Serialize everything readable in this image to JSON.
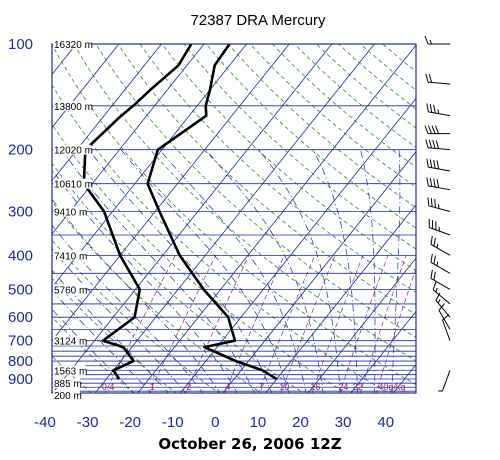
{
  "title": "72387 DRA Mercury",
  "footer": "October 26, 2006 12Z",
  "chart_data": {
    "type": "skew-t log-p",
    "title": "72387 DRA Mercury",
    "caption": "October 26, 2006 12Z",
    "pressure_ticks": [
      "100",
      "200",
      "300",
      "400",
      "500",
      "600",
      "700",
      "800",
      "900"
    ],
    "temperature_ticks": [
      "-40",
      "-30",
      "-20",
      "-10",
      "0",
      "10",
      "20",
      "30",
      "40"
    ],
    "height_labels": [
      {
        "p": 100,
        "label": "16320 m"
      },
      {
        "p": 150,
        "label": "13800 m"
      },
      {
        "p": 200,
        "label": "12020 m"
      },
      {
        "p": 250,
        "label": "10610 m"
      },
      {
        "p": 300,
        "label": "9410 m"
      },
      {
        "p": 400,
        "label": "7410 m"
      },
      {
        "p": 500,
        "label": "5760 m"
      },
      {
        "p": 700,
        "label": "3124 m"
      },
      {
        "p": 850,
        "label": "1563 m"
      },
      {
        "p": 925,
        "label": "885 m"
      },
      {
        "p": 1000,
        "label": "200 m"
      }
    ],
    "mixing_ratio_labels": [
      "0.4",
      "1",
      "2",
      "4",
      "7",
      "10",
      "16",
      "24",
      "32",
      "40g/kg"
    ],
    "temperature_profile": [
      [
        100,
        -64
      ],
      [
        115,
        -63.5
      ],
      [
        135,
        -60
      ],
      [
        150,
        -58
      ],
      [
        160,
        -56
      ],
      [
        200,
        -61
      ],
      [
        250,
        -57
      ],
      [
        300,
        -49
      ],
      [
        400,
        -36
      ],
      [
        500,
        -24
      ],
      [
        600,
        -13
      ],
      [
        700,
        -7
      ],
      [
        730,
        -13
      ],
      [
        800,
        -3
      ],
      [
        850,
        5
      ],
      [
        900,
        10
      ]
    ],
    "dewpoint_profile": [
      [
        100,
        -73
      ],
      [
        115,
        -72
      ],
      [
        135,
        -74
      ],
      [
        150,
        -75
      ],
      [
        160,
        -76
      ],
      [
        200,
        -78
      ],
      [
        250,
        -72
      ],
      [
        300,
        -62
      ],
      [
        400,
        -50
      ],
      [
        500,
        -39
      ],
      [
        600,
        -35
      ],
      [
        700,
        -38
      ],
      [
        730,
        -32
      ],
      [
        800,
        -27
      ],
      [
        850,
        -30
      ],
      [
        900,
        -27
      ]
    ],
    "wind_barbs": [
      {
        "p": 100,
        "dir": 270,
        "speed": 15
      },
      {
        "p": 130,
        "dir": 275,
        "speed": 20
      },
      {
        "p": 160,
        "dir": 280,
        "speed": 35
      },
      {
        "p": 180,
        "dir": 270,
        "speed": 40
      },
      {
        "p": 200,
        "dir": 275,
        "speed": 40
      },
      {
        "p": 230,
        "dir": 280,
        "speed": 40
      },
      {
        "p": 260,
        "dir": 280,
        "speed": 40
      },
      {
        "p": 300,
        "dir": 285,
        "speed": 35
      },
      {
        "p": 350,
        "dir": 290,
        "speed": 35
      },
      {
        "p": 400,
        "dir": 300,
        "speed": 25
      },
      {
        "p": 450,
        "dir": 300,
        "speed": 25
      },
      {
        "p": 500,
        "dir": 300,
        "speed": 20
      },
      {
        "p": 550,
        "dir": 310,
        "speed": 15
      },
      {
        "p": 600,
        "dir": 320,
        "speed": 15
      },
      {
        "p": 650,
        "dir": 330,
        "speed": 10
      },
      {
        "p": 700,
        "dir": 340,
        "speed": 10
      },
      {
        "p": 850,
        "dir": 200,
        "speed": 5
      }
    ],
    "xlim": [
      -40,
      45
    ],
    "ylim": [
      1050,
      100
    ],
    "yscale": "log",
    "colors": {
      "frame": "#1f2a9a",
      "isobar": "#1f2a9a",
      "isotherm": "#1f2a9a",
      "dry_adiabat": "#2a8a3a",
      "moist_adiabat": "#1f2a9a",
      "mixing_ratio": "#8a2a8a",
      "profile": "#000000"
    }
  }
}
